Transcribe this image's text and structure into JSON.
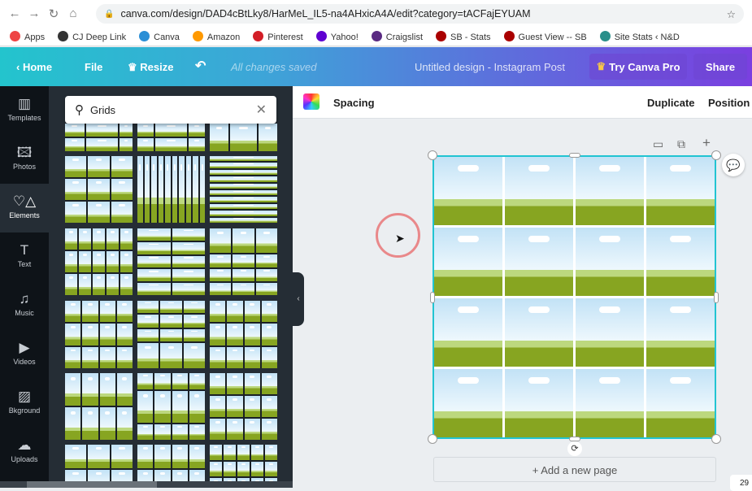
{
  "browser": {
    "url": "canva.com/design/DAD4cBtLky8/HarMeL_IL5-na4AHxicA4A/edit?category=tACFajEYUAM",
    "bookmarks": [
      {
        "label": "Apps",
        "color": "#e44"
      },
      {
        "label": "CJ Deep Link",
        "color": "#333"
      },
      {
        "label": "Canva",
        "color": "#2b8fd6"
      },
      {
        "label": "Amazon",
        "color": "#f90"
      },
      {
        "label": "Pinterest",
        "color": "#d31e27"
      },
      {
        "label": "Yahoo!",
        "color": "#5f01d1"
      },
      {
        "label": "Craigslist",
        "color": "#5a2a82"
      },
      {
        "label": "SB - Stats",
        "color": "#a00"
      },
      {
        "label": "Guest View -- SB",
        "color": "#a00"
      },
      {
        "label": "Site Stats ‹ N&D",
        "color": "#2a8f8a"
      }
    ]
  },
  "header": {
    "home": "Home",
    "file": "File",
    "resize": "Resize",
    "saved": "All changes saved",
    "title": "Untitled design - Instagram Post",
    "pro": "Try Canva Pro",
    "share": "Share"
  },
  "rail": [
    {
      "label": "Templates",
      "icon": "▥"
    },
    {
      "label": "Photos",
      "icon": "🖾"
    },
    {
      "label": "Elements",
      "icon": "♡△"
    },
    {
      "label": "Text",
      "icon": "T"
    },
    {
      "label": "Music",
      "icon": "♫"
    },
    {
      "label": "Videos",
      "icon": "▶"
    },
    {
      "label": "Bkground",
      "icon": "▨"
    },
    {
      "label": "Uploads",
      "icon": "☁"
    }
  ],
  "search": {
    "value": "Grids"
  },
  "toolbar": {
    "spacing": "Spacing",
    "duplicate": "Duplicate",
    "position": "Position"
  },
  "canvas": {
    "add_page": "+ Add a new page",
    "rows": 4,
    "cols": 4,
    "zoom": "29"
  },
  "colors": {
    "accent": "#22c4d2",
    "selection": "#22c4d2"
  }
}
